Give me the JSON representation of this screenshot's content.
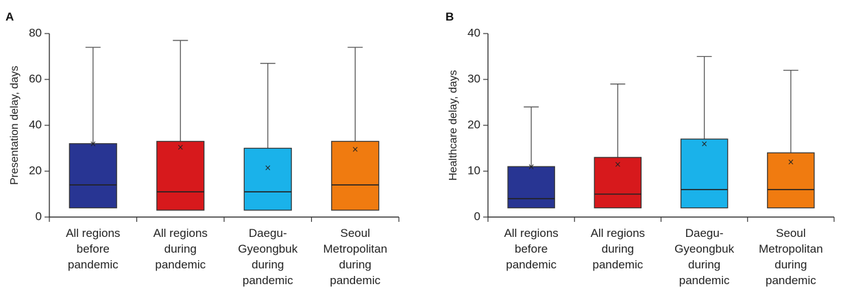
{
  "chart_data": [
    {
      "panel": "A",
      "type": "box",
      "ylabel": "Presentation delay, days",
      "ylim": [
        0,
        80
      ],
      "yticks": [
        "0",
        "20",
        "40",
        "60",
        "80"
      ],
      "categories": [
        [
          "All regions",
          "before",
          "pandemic"
        ],
        [
          "All regions",
          "during",
          "pandemic"
        ],
        [
          "Daegu-",
          "Gyeongbuk",
          "during",
          "pandemic"
        ],
        [
          "Seoul",
          "Metropolitan",
          "during",
          "pandemic"
        ]
      ],
      "colors": [
        "#283593",
        "#d7191c",
        "#1ab2ea",
        "#f07b10"
      ],
      "boxes": [
        {
          "min": 4,
          "q1": 4,
          "median": 14,
          "q3": 32,
          "max": 74,
          "mean": 32
        },
        {
          "min": 3,
          "q1": 3,
          "median": 11,
          "q3": 33,
          "max": 77,
          "mean": 30.5
        },
        {
          "min": 3,
          "q1": 3,
          "median": 11,
          "q3": 30,
          "max": 67,
          "mean": 21.5
        },
        {
          "min": 3,
          "q1": 3,
          "median": 14,
          "q3": 33,
          "max": 74,
          "mean": 29.5
        }
      ]
    },
    {
      "panel": "B",
      "type": "box",
      "ylabel": "Healthcare delay, days",
      "ylim": [
        0,
        40
      ],
      "yticks": [
        "0",
        "10",
        "20",
        "30",
        "40"
      ],
      "categories": [
        [
          "All regions",
          "before",
          "pandemic"
        ],
        [
          "All regions",
          "during",
          "pandemic"
        ],
        [
          "Daegu-",
          "Gyeongbuk",
          "during",
          "pandemic"
        ],
        [
          "Seoul",
          "Metropolitan",
          "during",
          "pandemic"
        ]
      ],
      "colors": [
        "#283593",
        "#d7191c",
        "#1ab2ea",
        "#f07b10"
      ],
      "boxes": [
        {
          "min": 2,
          "q1": 2,
          "median": 4,
          "q3": 11,
          "max": 24,
          "mean": 11
        },
        {
          "min": 2,
          "q1": 2,
          "median": 5,
          "q3": 13,
          "max": 29,
          "mean": 11.5
        },
        {
          "min": 2,
          "q1": 2,
          "median": 6,
          "q3": 17,
          "max": 35,
          "mean": 16
        },
        {
          "min": 2,
          "q1": 2,
          "median": 6,
          "q3": 14,
          "max": 32,
          "mean": 12
        }
      ]
    }
  ]
}
